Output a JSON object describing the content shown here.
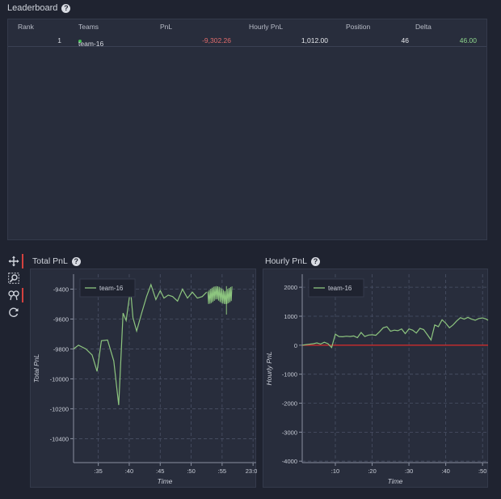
{
  "leaderboard": {
    "title": "Leaderboard",
    "help_icon": "?",
    "columns": [
      "Rank",
      "Teams",
      "PnL",
      "Hourly PnL",
      "Position",
      "Delta"
    ],
    "rows": [
      {
        "rank": "1",
        "team": "team-16",
        "pnl": "-9,302.26",
        "hourly_pnl": "1,012.00",
        "position": "46",
        "delta": "46.00"
      }
    ]
  },
  "toolbar": {
    "icons": [
      "pan-icon",
      "box-zoom-icon",
      "wheel-zoom-icon",
      "reset-icon"
    ]
  },
  "charts": {
    "total": {
      "title": "Total PnL",
      "help_icon": "?"
    },
    "hourly": {
      "title": "Hourly PnL",
      "help_icon": "?"
    }
  },
  "colors": {
    "series": "#8dc57f",
    "zero_line": "#cc2b2b",
    "negative": "#e06c6c"
  },
  "chart_data": [
    {
      "type": "line",
      "xlabel": "Time",
      "ylabel": "Total PnL",
      "xticks": [
        ":35",
        ":40",
        ":45",
        ":50",
        ":55",
        "23:00"
      ],
      "xtick_values": [
        35,
        40,
        45,
        50,
        55,
        60
      ],
      "xlim": [
        31,
        60.5
      ],
      "yticks": [
        -9400,
        -9600,
        -9800,
        -10000,
        -10200,
        -10400
      ],
      "ylim": [
        -10560,
        -9300
      ],
      "legend": "top-left",
      "grid": true,
      "series": [
        {
          "name": "team-16",
          "x": [
            31,
            31.8,
            33,
            34,
            34.8,
            35.5,
            36.5,
            37.5,
            38.3,
            39,
            39.5,
            40.2,
            40.6,
            41.2,
            42,
            42.8,
            43.5,
            44.3,
            45,
            45.6,
            46.3,
            47,
            47.8,
            48.6,
            49.4,
            50.2,
            51,
            51.8,
            52.5
          ],
          "y": [
            -9800,
            -9775,
            -9800,
            -9840,
            -9950,
            -9745,
            -9740,
            -9880,
            -10175,
            -9560,
            -9610,
            -9400,
            -9590,
            -9680,
            -9560,
            -9450,
            -9370,
            -9470,
            -9410,
            -9460,
            -9440,
            -9450,
            -9480,
            -9400,
            -9460,
            -9420,
            -9460,
            -9450,
            -9420
          ]
        }
      ]
    },
    {
      "type": "line",
      "xlabel": "Time",
      "ylabel": "Hourly PnL",
      "xticks": [
        ":10",
        ":20",
        ":30",
        ":40",
        ":50"
      ],
      "xtick_values": [
        10,
        20,
        30,
        40,
        50
      ],
      "xlim": [
        1,
        51.5
      ],
      "yticks": [
        2000,
        1000,
        0,
        -1000,
        -2000,
        -3000,
        -4000
      ],
      "ylim": [
        -4050,
        2450
      ],
      "legend": "top-left",
      "grid": true,
      "series": [
        {
          "name": "team-16",
          "x": [
            1,
            2,
            4,
            5,
            6,
            7,
            8,
            9,
            10,
            11,
            12,
            13,
            14,
            15,
            16,
            17,
            18,
            19,
            20,
            21,
            22,
            23,
            24,
            25,
            26,
            27,
            28,
            29,
            30,
            31,
            32,
            33,
            34,
            35,
            36,
            37,
            38,
            39,
            40,
            41,
            42,
            43,
            44,
            45,
            46,
            47,
            48,
            49,
            50,
            51,
            51.5
          ],
          "y": [
            0,
            20,
            50,
            80,
            40,
            100,
            50,
            -80,
            380,
            300,
            290,
            310,
            300,
            320,
            260,
            440,
            300,
            350,
            360,
            340,
            460,
            600,
            640,
            480,
            520,
            500,
            560,
            400,
            560,
            520,
            420,
            580,
            540,
            360,
            180,
            700,
            640,
            880,
            760,
            600,
            700,
            840,
            950,
            900,
            960,
            900,
            860,
            920,
            940,
            900,
            860
          ]
        }
      ]
    }
  ]
}
